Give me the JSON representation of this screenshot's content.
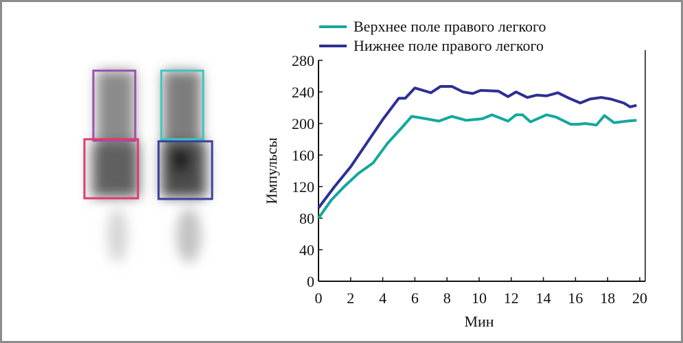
{
  "chart_data": {
    "type": "line",
    "title": "",
    "xlabel": "Мин",
    "ylabel": "Импульсы",
    "xlim": [
      0,
      20
    ],
    "ylim": [
      0,
      280
    ],
    "xticks": [
      0,
      2,
      4,
      6,
      8,
      10,
      12,
      14,
      16,
      18,
      20
    ],
    "yticks": [
      0,
      40,
      80,
      120,
      160,
      200,
      240,
      280
    ],
    "grid": false,
    "legend_position": "top",
    "series": [
      {
        "name": "Верхнее поле правого легкого",
        "color": "#14a89c",
        "x": [
          0,
          0.8,
          1.6,
          2.5,
          3.4,
          4.3,
          5.2,
          5.8,
          6.7,
          7.5,
          8.3,
          9.2,
          10.2,
          10.8,
          11.8,
          12.3,
          12.7,
          13.2,
          14.2,
          14.8,
          15.7,
          16.2,
          16.6,
          17.3,
          17.8,
          18.4,
          19.2,
          19.8
        ],
        "y": [
          80,
          103,
          120,
          137,
          150,
          175,
          195,
          209,
          206,
          203,
          209,
          204,
          206,
          211,
          203,
          211,
          211,
          202,
          211,
          208,
          199,
          199,
          200,
          198,
          210,
          201,
          203,
          204
        ]
      },
      {
        "name": "Нижнее поле правого легкого",
        "color": "#2e2f94",
        "x": [
          0,
          1,
          2,
          3,
          4,
          5,
          5.4,
          6,
          7,
          7.6,
          8.3,
          9,
          9.6,
          10.1,
          11.2,
          11.8,
          12.3,
          13,
          13.6,
          14.2,
          14.9,
          15.6,
          16.3,
          16.9,
          17.6,
          18.2,
          19,
          19.4,
          19.8
        ],
        "y": [
          93,
          120,
          145,
          175,
          205,
          232,
          232,
          245,
          239,
          247,
          247,
          240,
          238,
          242,
          241,
          234,
          240,
          233,
          236,
          235,
          239,
          232,
          226,
          231,
          233,
          231,
          226,
          221,
          223
        ]
      }
    ]
  }
}
